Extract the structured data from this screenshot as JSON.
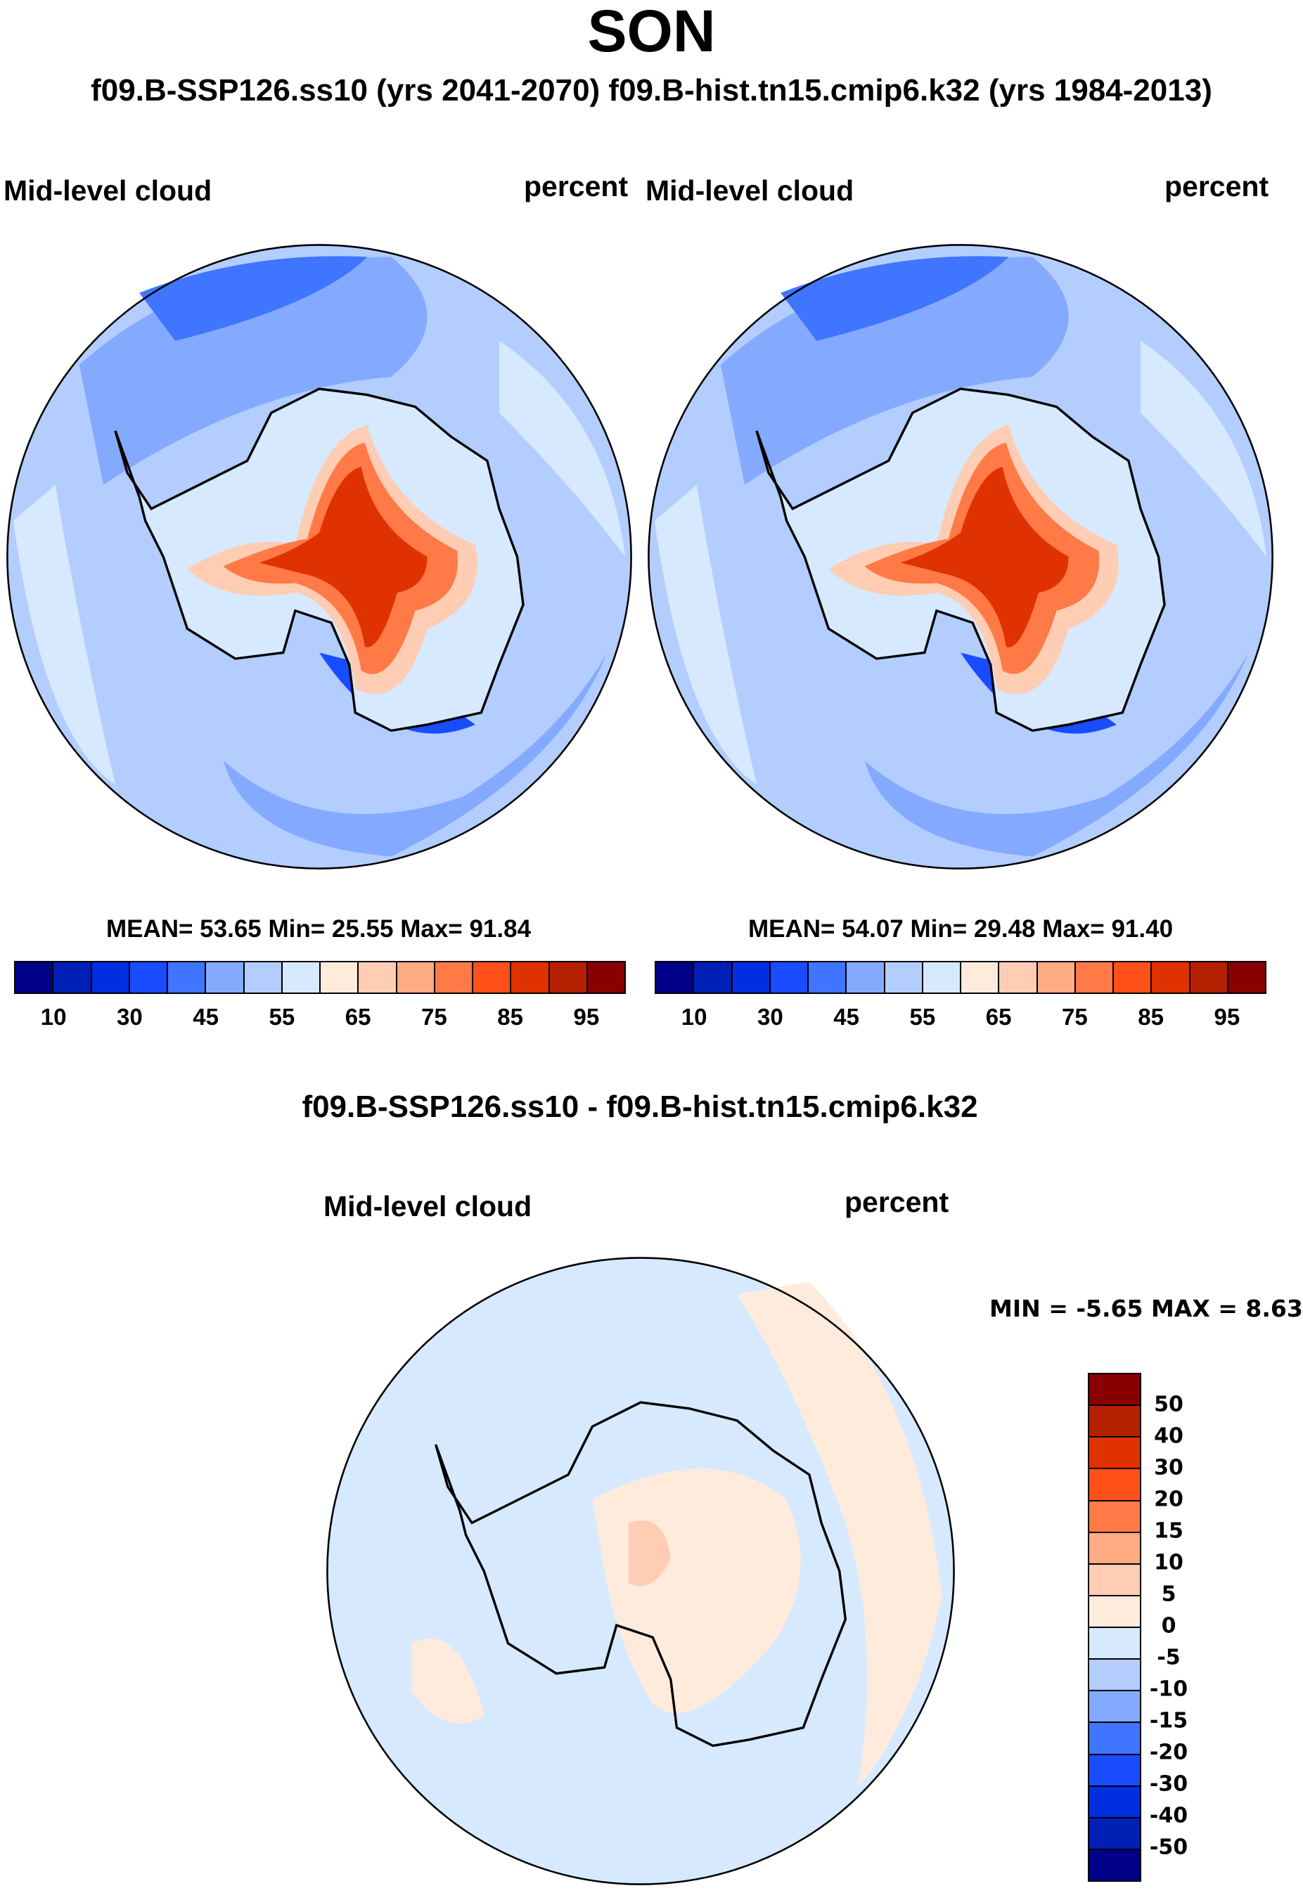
{
  "title": "SON",
  "subtitle": "f09.B-SSP126.ss10 (yrs 2041-2070)  f09.B-hist.tn15.cmip6.k32 (yrs 1984-2013)",
  "panels": [
    {
      "variable": "Mid-level cloud",
      "units": "percent",
      "stats": "MEAN=  53.65  Min=  25.55  Max=  91.84"
    },
    {
      "variable": "Mid-level cloud",
      "units": "percent",
      "stats": "MEAN=  54.07  Min=  29.48  Max=  91.40"
    }
  ],
  "diff": {
    "title": "f09.B-SSP126.ss10 - f09.B-hist.tn15.cmip6.k32",
    "variable": "Mid-level cloud",
    "units": "percent",
    "stats": "MIN =  -5.65 MAX =   8.63"
  },
  "colorbar": {
    "colors": [
      "#000088",
      "#001fb4",
      "#002ee0",
      "#1a4cff",
      "#3f75ff",
      "#84aaff",
      "#b3cdff",
      "#d6e9ff",
      "#ffebdc",
      "#ffcdb4",
      "#ffab84",
      "#ff7a46",
      "#ff501a",
      "#e03200",
      "#b42000",
      "#880000"
    ],
    "labels": [
      "10",
      "30",
      "45",
      "55",
      "65",
      "75",
      "85",
      "95"
    ]
  },
  "diff_colorbar": {
    "labels": [
      "50",
      "40",
      "30",
      "20",
      "15",
      "10",
      "5",
      "0",
      "-5",
      "-10",
      "-15",
      "-20",
      "-30",
      "-40",
      "-50"
    ]
  }
}
